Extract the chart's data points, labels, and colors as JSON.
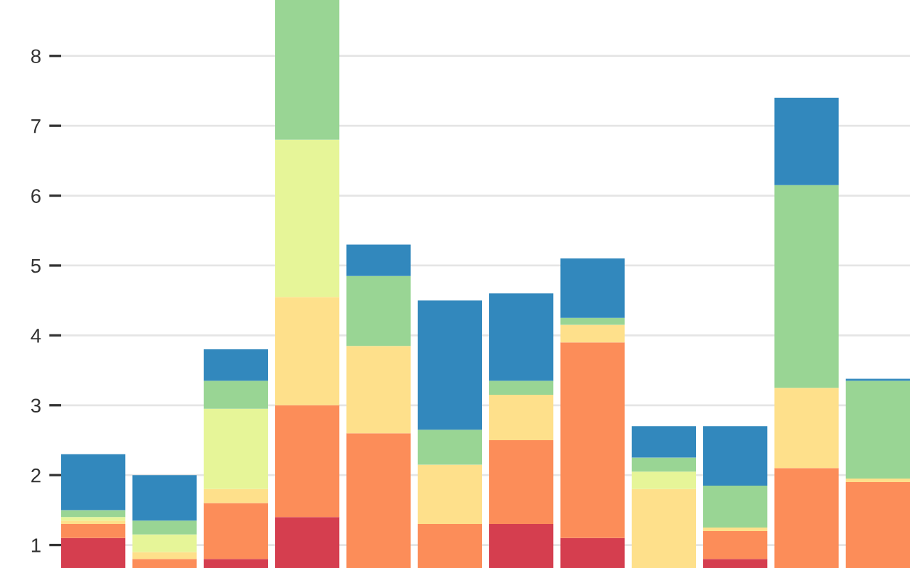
{
  "chart_data": {
    "type": "bar",
    "stacked": true,
    "categories": [
      null,
      null,
      null,
      null,
      null,
      null,
      null,
      null,
      null,
      null,
      null,
      null
    ],
    "series": [
      {
        "color": "#d53e4f",
        "values": [
          1.1,
          null,
          0.8,
          1.4,
          null,
          null,
          1.3,
          1.1,
          null,
          0.8,
          null,
          null
        ]
      },
      {
        "color": "#fc8d59",
        "values": [
          0.2,
          0.8,
          0.8,
          1.6,
          2.6,
          1.3,
          1.2,
          2.8,
          null,
          0.4,
          2.1,
          1.9
        ]
      },
      {
        "color": "#fee08b",
        "values": [
          0.05,
          0.1,
          0.2,
          1.55,
          1.25,
          0.85,
          0.65,
          0.25,
          1.8,
          0.05,
          1.15,
          0.05
        ]
      },
      {
        "color": "#e6f598",
        "values": [
          0.05,
          0.25,
          1.15,
          2.25,
          null,
          null,
          null,
          null,
          0.25,
          null,
          null,
          null
        ]
      },
      {
        "color": "#99d594",
        "values": [
          0.1,
          0.2,
          0.4,
          2.0,
          1.0,
          0.5,
          0.2,
          0.1,
          0.2,
          0.6,
          2.9,
          1.4
        ]
      },
      {
        "color": "#3288bd",
        "values": [
          0.8,
          0.65,
          0.45,
          null,
          0.45,
          1.85,
          1.25,
          0.85,
          0.45,
          0.85,
          1.25,
          0.03
        ]
      }
    ],
    "ylim": [
      0,
      8.8
    ],
    "yticks": [
      1,
      2,
      3,
      4,
      5,
      6,
      7,
      8
    ],
    "grid": "y",
    "tick_labels": "y"
  }
}
